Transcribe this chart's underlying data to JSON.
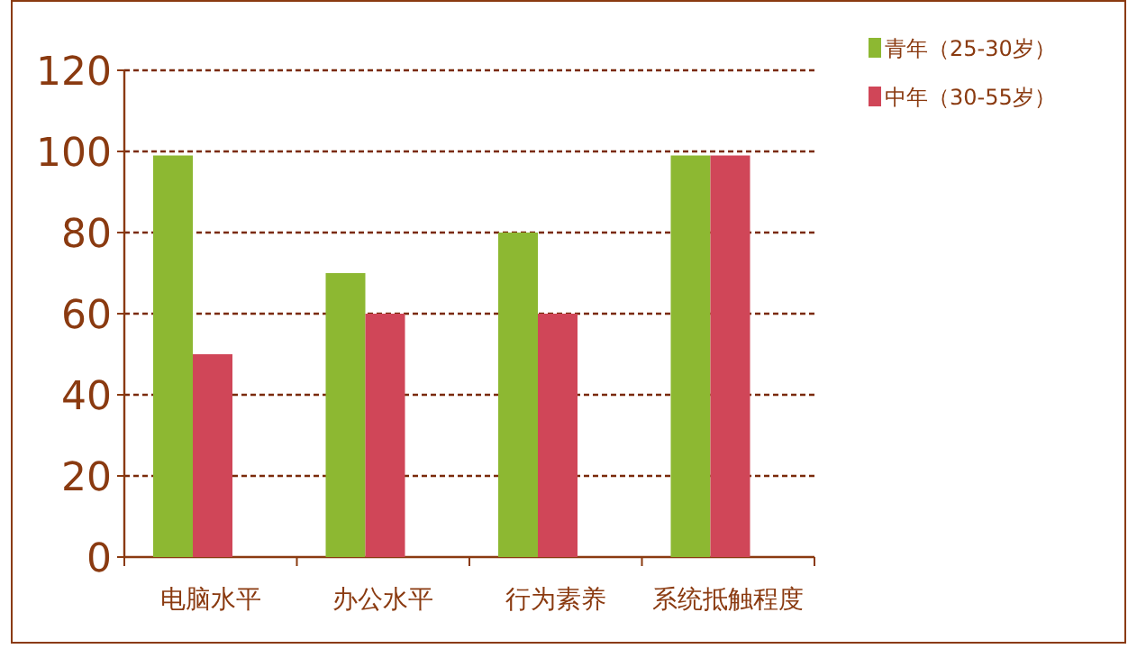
{
  "chart_data": {
    "type": "bar",
    "categories": [
      "电脑水平",
      "办公水平",
      "行为素养",
      "系统抵触程度"
    ],
    "series": [
      {
        "name": "青年（25-30岁）",
        "color": "#8db832",
        "values": [
          99,
          70,
          80,
          99
        ]
      },
      {
        "name": "中年（30-55岁）",
        "color": "#d04658",
        "values": [
          50,
          60,
          60,
          99
        ]
      }
    ],
    "ylim": [
      0,
      120
    ],
    "yticks": [
      0,
      20,
      40,
      60,
      80,
      100,
      120
    ],
    "grid": "y",
    "legend": "top right"
  }
}
